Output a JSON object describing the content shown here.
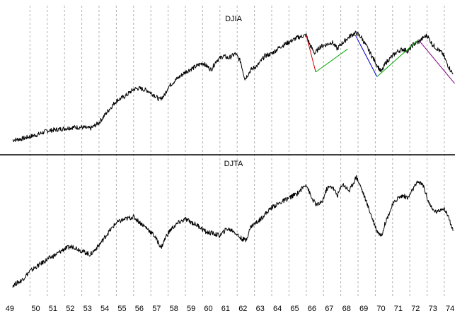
{
  "chart_data": [
    {
      "type": "line",
      "title": "DJIA",
      "xlabel": "",
      "ylabel": "",
      "x_tick_labels": [
        "49",
        "50",
        "51",
        "52",
        "53",
        "54",
        "55",
        "56",
        "57",
        "58",
        "59",
        "60",
        "61",
        "62",
        "63",
        "64",
        "65",
        "66",
        "67",
        "68",
        "69",
        "70",
        "71",
        "72",
        "73",
        "74"
      ],
      "grid": "vertical dashed at each year",
      "ylim": [
        0,
        100
      ],
      "series": [
        {
          "x": [
            1949.0,
            1949.5,
            1950.0,
            1950.5,
            1951.0,
            1951.5,
            1952.0,
            1952.5,
            1953.0,
            1953.5,
            1954.0,
            1954.5,
            1955.0,
            1955.5,
            1956.0,
            1956.3,
            1956.8,
            1957.2,
            1957.5,
            1957.8,
            1958.0,
            1958.5,
            1959.0,
            1959.5,
            1960.0,
            1960.5,
            1960.8,
            1961.2,
            1961.5,
            1961.9,
            1962.2,
            1962.45,
            1962.8,
            1963.2,
            1963.6,
            1964.0,
            1964.5,
            1965.0,
            1965.5,
            1966.0,
            1966.2,
            1966.5,
            1966.8,
            1967.2,
            1967.5,
            1967.8,
            1968.0,
            1968.3,
            1968.6,
            1968.9,
            1969.2,
            1969.5,
            1969.8,
            1970.1,
            1970.35,
            1970.6,
            1971.0,
            1971.3,
            1971.6,
            1971.9,
            1972.2,
            1972.5,
            1972.8,
            1973.0,
            1973.3,
            1973.6,
            1973.9,
            1974.2,
            1974.5
          ],
          "values": [
            3,
            4,
            6,
            8,
            11,
            12,
            13,
            14,
            14,
            13,
            18,
            28,
            37,
            41,
            47,
            48,
            46,
            42,
            38,
            42,
            49,
            56,
            62,
            66,
            70,
            64,
            72,
            76,
            74,
            78,
            71,
            56,
            64,
            68,
            76,
            78,
            84,
            88,
            92,
            94,
            86,
            78,
            84,
            86,
            88,
            82,
            86,
            90,
            94,
            96,
            92,
            84,
            76,
            68,
            62,
            70,
            76,
            80,
            82,
            80,
            86,
            88,
            92,
            94,
            86,
            82,
            78,
            68,
            60
          ],
          "style": {
            "color": "#000000"
          }
        }
      ],
      "trend_lines": [
        {
          "x": [
            1966.0,
            1966.55
          ],
          "values": [
            94,
            62
          ],
          "color": "#cc0000"
        },
        {
          "x": [
            1966.55,
            1968.4
          ],
          "values": [
            62,
            82
          ],
          "color": "#00aa00"
        },
        {
          "x": [
            1968.85,
            1970.1
          ],
          "values": [
            94,
            58
          ],
          "color": "#0000cc"
        },
        {
          "x": [
            1970.1,
            1972.5
          ],
          "values": [
            58,
            90
          ],
          "color": "#00aa00"
        },
        {
          "x": [
            1972.5,
            1974.6
          ],
          "values": [
            90,
            52
          ],
          "color": "#800080"
        }
      ]
    },
    {
      "type": "line",
      "title": "DJTA",
      "xlabel": "",
      "ylabel": "",
      "x_tick_labels": [
        "49",
        "50",
        "51",
        "52",
        "53",
        "54",
        "55",
        "56",
        "57",
        "58",
        "59",
        "60",
        "61",
        "62",
        "63",
        "64",
        "65",
        "66",
        "67",
        "68",
        "69",
        "70",
        "71",
        "72",
        "73",
        "74"
      ],
      "grid": "vertical dashed at each year",
      "ylim": [
        0,
        100
      ],
      "series": [
        {
          "x": [
            1949.0,
            1949.5,
            1950.0,
            1950.5,
            1951.0,
            1951.5,
            1952.0,
            1952.5,
            1953.0,
            1953.5,
            1954.0,
            1954.5,
            1955.0,
            1955.5,
            1956.0,
            1956.3,
            1956.8,
            1957.2,
            1957.6,
            1957.9,
            1958.2,
            1958.6,
            1959.0,
            1959.4,
            1959.8,
            1960.2,
            1960.6,
            1961.0,
            1961.4,
            1961.8,
            1962.2,
            1962.5,
            1962.8,
            1963.2,
            1963.6,
            1964.0,
            1964.5,
            1965.0,
            1965.5,
            1966.0,
            1966.3,
            1966.6,
            1966.9,
            1967.2,
            1967.5,
            1967.8,
            1968.1,
            1968.5,
            1968.9,
            1969.2,
            1969.5,
            1969.8,
            1970.1,
            1970.35,
            1970.6,
            1971.0,
            1971.3,
            1971.6,
            1971.9,
            1972.2,
            1972.5,
            1972.8,
            1973.0,
            1973.3,
            1973.6,
            1973.9,
            1974.2,
            1974.5
          ],
          "values": [
            2,
            6,
            14,
            19,
            24,
            28,
            33,
            35,
            31,
            28,
            36,
            46,
            55,
            58,
            60,
            56,
            50,
            44,
            34,
            44,
            50,
            55,
            58,
            55,
            52,
            47,
            46,
            44,
            50,
            48,
            42,
            40,
            52,
            56,
            62,
            68,
            72,
            76,
            80,
            88,
            76,
            70,
            72,
            84,
            86,
            78,
            88,
            82,
            94,
            84,
            72,
            60,
            48,
            44,
            56,
            70,
            76,
            78,
            76,
            84,
            90,
            86,
            76,
            66,
            64,
            68,
            62,
            48
          ],
          "style": {
            "color": "#000000"
          }
        }
      ]
    }
  ]
}
